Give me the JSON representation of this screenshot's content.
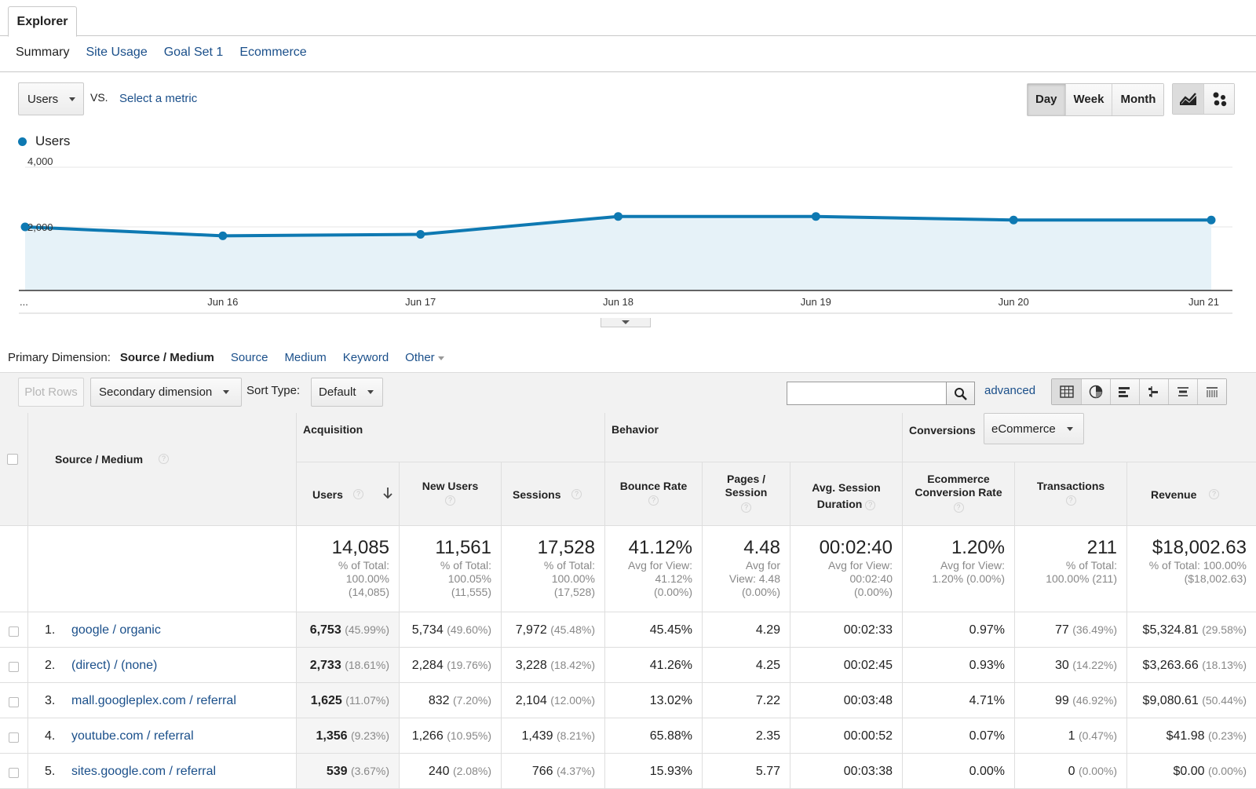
{
  "tabs": {
    "explorer": "Explorer"
  },
  "subtabs": [
    "Summary",
    "Site Usage",
    "Goal Set 1",
    "Ecommerce"
  ],
  "metric": {
    "selected": "Users",
    "vs": "VS.",
    "select_metric": "Select a metric"
  },
  "period": [
    "Day",
    "Week",
    "Month"
  ],
  "period_selected": "Day",
  "chart_types": [
    "line-chart-icon",
    "motion-chart-icon"
  ],
  "legend": "Users",
  "chart_data": {
    "type": "area",
    "series": [
      {
        "name": "Users",
        "values": [
          2000,
          1700,
          1750,
          2350,
          2350,
          2230,
          2230
        ]
      }
    ],
    "x": [
      "...",
      "Jun 16",
      "Jun 17",
      "Jun 18",
      "Jun 19",
      "Jun 20",
      "Jun 21"
    ],
    "yticks": [
      "4,000",
      "2,000"
    ],
    "ylim": [
      0,
      4000
    ],
    "color": "#0e79b2",
    "fill": "#e6f2f8"
  },
  "primary_dimension": {
    "label": "Primary Dimension:",
    "selected": "Source / Medium",
    "options": [
      "Source",
      "Medium",
      "Keyword",
      "Other"
    ]
  },
  "toolbar": {
    "plot_rows": "Plot Rows",
    "secondary_dimension": "Secondary dimension",
    "sort_type_label": "Sort Type:",
    "sort_type": "Default",
    "search_value": "",
    "advanced": "advanced",
    "views": [
      "data-table-icon",
      "pie-chart-icon",
      "performance-icon",
      "comparison-icon",
      "term-cloud-icon",
      "pivot-icon"
    ]
  },
  "table": {
    "dimension_header": "Source / Medium",
    "groups": {
      "acquisition": "Acquisition",
      "behavior": "Behavior",
      "conversions": "Conversions",
      "conversions_select": "eCommerce"
    },
    "columns": {
      "users": "Users",
      "new_users": "New Users",
      "sessions": "Sessions",
      "bounce_rate": "Bounce Rate",
      "pages_session_1": "Pages /",
      "pages_session_2": "Session",
      "avg_session_1": "Avg. Session",
      "avg_session_2": "Duration",
      "ecr_1": "Ecommerce",
      "ecr_2": "Conversion Rate",
      "transactions": "Transactions",
      "revenue": "Revenue"
    },
    "totals": {
      "users": {
        "value": "14,085",
        "l1": "% of Total:",
        "l2": "100.00%",
        "l3": "(14,085)"
      },
      "new_users": {
        "value": "11,561",
        "l1": "% of Total:",
        "l2": "100.05%",
        "l3": "(11,555)"
      },
      "sessions": {
        "value": "17,528",
        "l1": "% of Total:",
        "l2": "100.00%",
        "l3": "(17,528)"
      },
      "bounce_rate": {
        "value": "41.12%",
        "l1": "Avg for View:",
        "l2": "41.12%",
        "l3": "(0.00%)"
      },
      "pages": {
        "value": "4.48",
        "l1": "Avg for",
        "l2": "View: 4.48",
        "l3": "(0.00%)"
      },
      "duration": {
        "value": "00:02:40",
        "l1": "Avg for View:",
        "l2": "00:02:40",
        "l3": "(0.00%)"
      },
      "ecr": {
        "value": "1.20%",
        "l1": "Avg for View:",
        "l2": "1.20% (0.00%)",
        "l3": ""
      },
      "transactions": {
        "value": "211",
        "l1": "% of Total:",
        "l2": "100.00% (211)",
        "l3": ""
      },
      "revenue": {
        "value": "$18,002.63",
        "l1": "% of Total: 100.00%",
        "l2": "($18,002.63)",
        "l3": ""
      }
    },
    "rows": [
      {
        "idx": "1.",
        "name": "google / organic",
        "users": "6,753",
        "users_pct": "(45.99%)",
        "new_users": "5,734",
        "new_users_pct": "(49.60%)",
        "sessions": "7,972",
        "sessions_pct": "(45.48%)",
        "bounce": "45.45%",
        "pages": "4.29",
        "duration": "00:02:33",
        "ecr": "0.97%",
        "transactions": "77",
        "transactions_pct": "(36.49%)",
        "revenue": "$5,324.81",
        "revenue_pct": "(29.58%)"
      },
      {
        "idx": "2.",
        "name": "(direct) / (none)",
        "users": "2,733",
        "users_pct": "(18.61%)",
        "new_users": "2,284",
        "new_users_pct": "(19.76%)",
        "sessions": "3,228",
        "sessions_pct": "(18.42%)",
        "bounce": "41.26%",
        "pages": "4.25",
        "duration": "00:02:45",
        "ecr": "0.93%",
        "transactions": "30",
        "transactions_pct": "(14.22%)",
        "revenue": "$3,263.66",
        "revenue_pct": "(18.13%)"
      },
      {
        "idx": "3.",
        "name": "mall.googleplex.com / referral",
        "users": "1,625",
        "users_pct": "(11.07%)",
        "new_users": "832",
        "new_users_pct": "(7.20%)",
        "sessions": "2,104",
        "sessions_pct": "(12.00%)",
        "bounce": "13.02%",
        "pages": "7.22",
        "duration": "00:03:48",
        "ecr": "4.71%",
        "transactions": "99",
        "transactions_pct": "(46.92%)",
        "revenue": "$9,080.61",
        "revenue_pct": "(50.44%)"
      },
      {
        "idx": "4.",
        "name": "youtube.com / referral",
        "users": "1,356",
        "users_pct": "(9.23%)",
        "new_users": "1,266",
        "new_users_pct": "(10.95%)",
        "sessions": "1,439",
        "sessions_pct": "(8.21%)",
        "bounce": "65.88%",
        "pages": "2.35",
        "duration": "00:00:52",
        "ecr": "0.07%",
        "transactions": "1",
        "transactions_pct": "(0.47%)",
        "revenue": "$41.98",
        "revenue_pct": "(0.23%)"
      },
      {
        "idx": "5.",
        "name": "sites.google.com / referral",
        "users": "539",
        "users_pct": "(3.67%)",
        "new_users": "240",
        "new_users_pct": "(2.08%)",
        "sessions": "766",
        "sessions_pct": "(4.37%)",
        "bounce": "15.93%",
        "pages": "5.77",
        "duration": "00:03:38",
        "ecr": "0.00%",
        "transactions": "0",
        "transactions_pct": "(0.00%)",
        "revenue": "$0.00",
        "revenue_pct": "(0.00%)"
      }
    ]
  }
}
